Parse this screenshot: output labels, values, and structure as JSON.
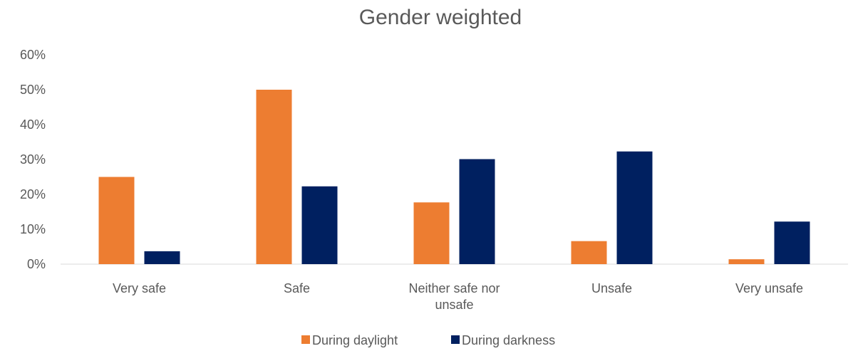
{
  "chart_data": {
    "type": "bar",
    "title": "Gender weighted",
    "xlabel": "",
    "ylabel": "",
    "categories": [
      "Very safe",
      "Safe",
      "Neither safe nor unsafe",
      "Unsafe",
      "Very unsafe"
    ],
    "category_lines": [
      [
        "Very safe"
      ],
      [
        "Safe"
      ],
      [
        "Neither safe nor",
        "unsafe"
      ],
      [
        "Unsafe"
      ],
      [
        "Very unsafe"
      ]
    ],
    "series": [
      {
        "name": "During daylight",
        "color": "#ED7D31",
        "values": [
          25,
          50,
          17.7,
          6.6,
          1.4
        ]
      },
      {
        "name": "During darkness",
        "color": "#002060",
        "values": [
          3.7,
          22.3,
          30.1,
          32.3,
          12.2
        ]
      }
    ],
    "ylim": [
      0,
      60
    ],
    "yticks": [
      0,
      10,
      20,
      30,
      40,
      50,
      60
    ],
    "ytick_labels": [
      "0%",
      "10%",
      "20%",
      "30%",
      "40%",
      "50%",
      "60%"
    ],
    "grid": false,
    "legend_position": "bottom"
  }
}
